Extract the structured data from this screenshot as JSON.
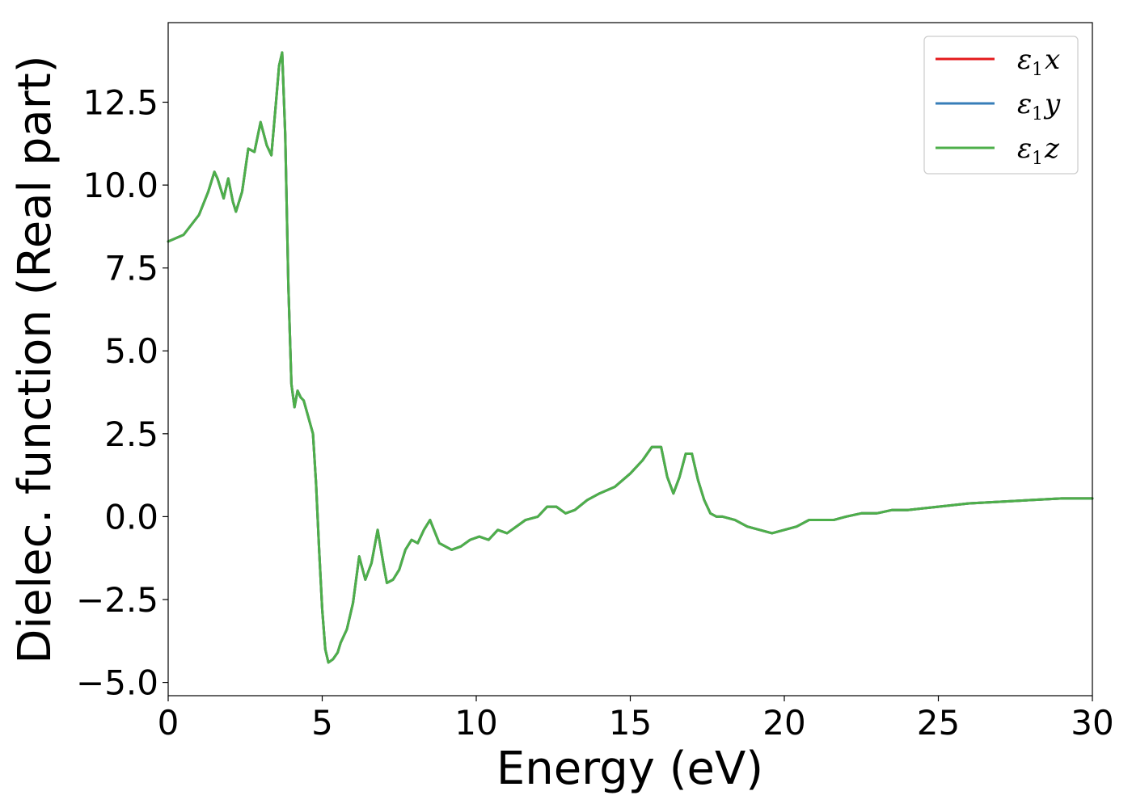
{
  "chart_data": {
    "type": "line",
    "title": "",
    "xlabel": "Energy (eV)",
    "ylabel": "Dielec. function (Real part)",
    "xlim": [
      0,
      30
    ],
    "ylim": [
      -5.4,
      14.9
    ],
    "xticks": [
      0,
      5,
      10,
      15,
      20,
      25,
      30
    ],
    "xtick_labels": [
      "0",
      "5",
      "10",
      "15",
      "20",
      "25",
      "30"
    ],
    "yticks": [
      -5.0,
      -2.5,
      0.0,
      2.5,
      5.0,
      7.5,
      10.0,
      12.5
    ],
    "ytick_labels": [
      "−5.0",
      "−2.5",
      "0.0",
      "2.5",
      "5.0",
      "7.5",
      "10.0",
      "12.5"
    ],
    "grid": false,
    "legend_position": "top-right",
    "x": [
      0,
      0.5,
      1.0,
      1.3,
      1.5,
      1.6,
      1.8,
      1.95,
      2.1,
      2.2,
      2.4,
      2.6,
      2.8,
      3.0,
      3.2,
      3.35,
      3.5,
      3.6,
      3.7,
      3.8,
      3.9,
      4.0,
      4.1,
      4.2,
      4.3,
      4.4,
      4.55,
      4.7,
      4.8,
      4.9,
      5.0,
      5.1,
      5.2,
      5.35,
      5.5,
      5.6,
      5.8,
      6.0,
      6.2,
      6.4,
      6.6,
      6.8,
      7.0,
      7.1,
      7.3,
      7.5,
      7.7,
      7.9,
      8.1,
      8.3,
      8.5,
      8.8,
      9.0,
      9.2,
      9.5,
      9.8,
      10.1,
      10.4,
      10.7,
      11.0,
      11.3,
      11.6,
      12.0,
      12.3,
      12.6,
      12.9,
      13.2,
      13.6,
      14.0,
      14.5,
      15.0,
      15.4,
      15.7,
      16.0,
      16.2,
      16.4,
      16.6,
      16.8,
      17.0,
      17.2,
      17.4,
      17.6,
      17.8,
      18.0,
      18.4,
      18.8,
      19.2,
      19.6,
      20.0,
      20.4,
      20.8,
      21.2,
      21.6,
      22.0,
      22.5,
      23.0,
      23.5,
      24.0,
      25.0,
      26.0,
      27.0,
      28.0,
      29.0,
      30.0
    ],
    "series": [
      {
        "name": "ε₁x",
        "color": "#e41a1c",
        "values": [
          8.3,
          8.5,
          9.1,
          9.8,
          10.4,
          10.2,
          9.6,
          10.2,
          9.5,
          9.2,
          9.8,
          11.1,
          11.0,
          11.9,
          11.2,
          10.9,
          12.5,
          13.6,
          14.0,
          11.5,
          7.0,
          4.0,
          3.3,
          3.8,
          3.6,
          3.5,
          3.0,
          2.5,
          1.0,
          -1.0,
          -2.8,
          -4.0,
          -4.4,
          -4.3,
          -4.1,
          -3.8,
          -3.4,
          -2.6,
          -1.2,
          -1.9,
          -1.4,
          -0.4,
          -1.5,
          -2.0,
          -1.9,
          -1.6,
          -1.0,
          -0.7,
          -0.8,
          -0.4,
          -0.1,
          -0.8,
          -0.9,
          -1.0,
          -0.9,
          -0.7,
          -0.6,
          -0.7,
          -0.4,
          -0.5,
          -0.3,
          -0.1,
          0.0,
          0.3,
          0.3,
          0.1,
          0.2,
          0.5,
          0.7,
          0.9,
          1.3,
          1.7,
          2.1,
          2.1,
          1.2,
          0.7,
          1.2,
          1.9,
          1.9,
          1.1,
          0.5,
          0.1,
          0.0,
          0.0,
          -0.1,
          -0.3,
          -0.4,
          -0.5,
          -0.4,
          -0.3,
          -0.1,
          -0.1,
          -0.1,
          0.0,
          0.1,
          0.1,
          0.2,
          0.2,
          0.3,
          0.4,
          0.45,
          0.5,
          0.55,
          0.55
        ]
      },
      {
        "name": "ε₁y",
        "color": "#377eb8",
        "values": [
          8.3,
          8.5,
          9.1,
          9.8,
          10.4,
          10.2,
          9.6,
          10.2,
          9.5,
          9.2,
          9.8,
          11.1,
          11.0,
          11.9,
          11.2,
          10.9,
          12.5,
          13.6,
          14.0,
          11.5,
          7.0,
          4.0,
          3.3,
          3.8,
          3.6,
          3.5,
          3.0,
          2.5,
          1.0,
          -1.0,
          -2.8,
          -4.0,
          -4.4,
          -4.3,
          -4.1,
          -3.8,
          -3.4,
          -2.6,
          -1.2,
          -1.9,
          -1.4,
          -0.4,
          -1.5,
          -2.0,
          -1.9,
          -1.6,
          -1.0,
          -0.7,
          -0.8,
          -0.4,
          -0.1,
          -0.8,
          -0.9,
          -1.0,
          -0.9,
          -0.7,
          -0.6,
          -0.7,
          -0.4,
          -0.5,
          -0.3,
          -0.1,
          0.0,
          0.3,
          0.3,
          0.1,
          0.2,
          0.5,
          0.7,
          0.9,
          1.3,
          1.7,
          2.1,
          2.1,
          1.2,
          0.7,
          1.2,
          1.9,
          1.9,
          1.1,
          0.5,
          0.1,
          0.0,
          0.0,
          -0.1,
          -0.3,
          -0.4,
          -0.5,
          -0.4,
          -0.3,
          -0.1,
          -0.1,
          -0.1,
          0.0,
          0.1,
          0.1,
          0.2,
          0.2,
          0.3,
          0.4,
          0.45,
          0.5,
          0.55,
          0.55
        ]
      },
      {
        "name": "ε₁z",
        "color": "#4daf4a",
        "values": [
          8.3,
          8.5,
          9.1,
          9.8,
          10.4,
          10.2,
          9.6,
          10.2,
          9.5,
          9.2,
          9.8,
          11.1,
          11.0,
          11.9,
          11.2,
          10.9,
          12.5,
          13.6,
          14.0,
          11.5,
          7.0,
          4.0,
          3.3,
          3.8,
          3.6,
          3.5,
          3.0,
          2.5,
          1.0,
          -1.0,
          -2.8,
          -4.0,
          -4.4,
          -4.3,
          -4.1,
          -3.8,
          -3.4,
          -2.6,
          -1.2,
          -1.9,
          -1.4,
          -0.4,
          -1.5,
          -2.0,
          -1.9,
          -1.6,
          -1.0,
          -0.7,
          -0.8,
          -0.4,
          -0.1,
          -0.8,
          -0.9,
          -1.0,
          -0.9,
          -0.7,
          -0.6,
          -0.7,
          -0.4,
          -0.5,
          -0.3,
          -0.1,
          0.0,
          0.3,
          0.3,
          0.1,
          0.2,
          0.5,
          0.7,
          0.9,
          1.3,
          1.7,
          2.1,
          2.1,
          1.2,
          0.7,
          1.2,
          1.9,
          1.9,
          1.1,
          0.5,
          0.1,
          0.0,
          0.0,
          -0.1,
          -0.3,
          -0.4,
          -0.5,
          -0.4,
          -0.3,
          -0.1,
          -0.1,
          -0.1,
          0.0,
          0.1,
          0.1,
          0.2,
          0.2,
          0.3,
          0.4,
          0.45,
          0.5,
          0.55,
          0.55
        ]
      }
    ],
    "legend": [
      {
        "symbol": "ε",
        "subscript": "1",
        "axis": "x"
      },
      {
        "symbol": "ε",
        "subscript": "1",
        "axis": "y"
      },
      {
        "symbol": "ε",
        "subscript": "1",
        "axis": "z"
      }
    ]
  }
}
